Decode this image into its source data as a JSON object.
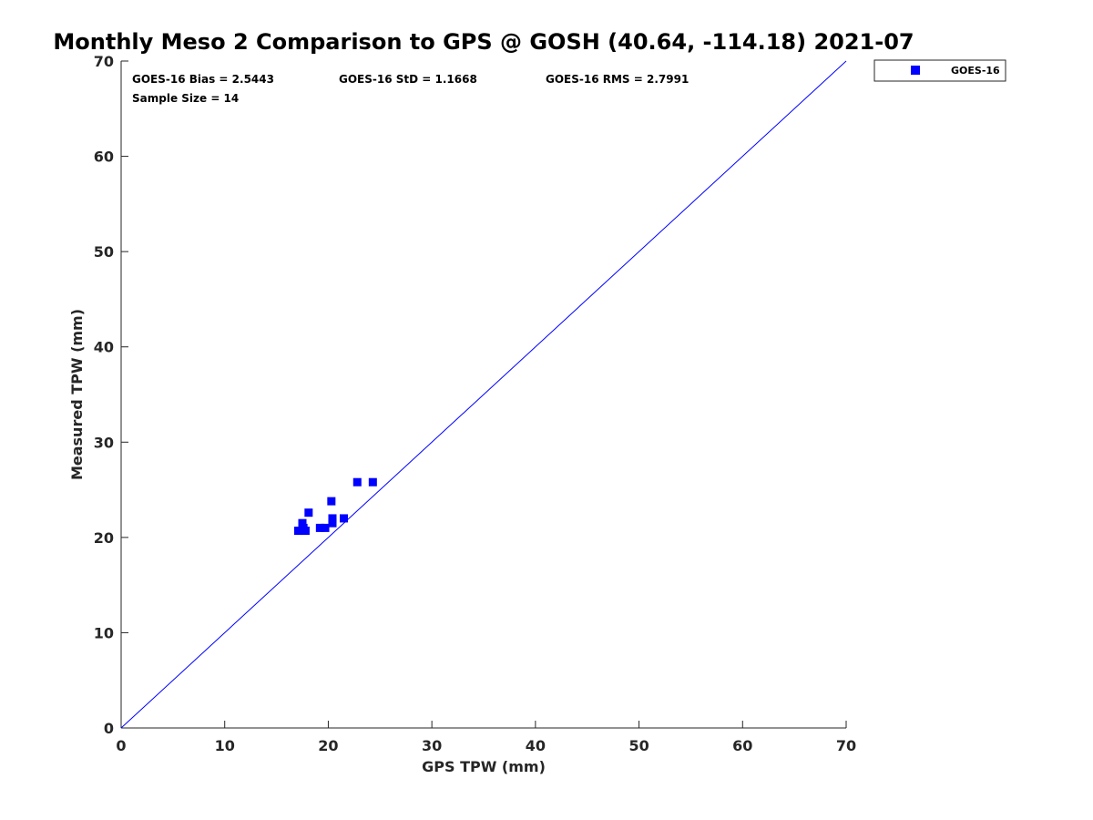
{
  "chart_data": {
    "type": "scatter",
    "title": "Monthly Meso 2 Comparison to GPS @ GOSH (40.64, -114.18) 2021-07",
    "xlabel": "GPS TPW (mm)",
    "ylabel": "Measured TPW (mm)",
    "xlim": [
      0,
      70
    ],
    "ylim": [
      0,
      70
    ],
    "xticks": [
      0,
      10,
      20,
      30,
      40,
      50,
      60,
      70
    ],
    "yticks": [
      0,
      10,
      20,
      30,
      40,
      50,
      60,
      70
    ],
    "grid": false,
    "legend_position": "top-right, outside plot",
    "stats": {
      "bias": "GOES-16 Bias = 2.5443",
      "std": "GOES-16 StD = 1.1668",
      "rms": "GOES-16 RMS = 2.7991",
      "sample_size": "Sample Size = 14"
    },
    "reference_line": {
      "from": [
        0,
        0
      ],
      "to": [
        70,
        70
      ],
      "color": "#0000ff"
    },
    "series": [
      {
        "name": "GOES-16",
        "color": "#0000ff",
        "marker": "square",
        "points": [
          [
            17.1,
            20.7
          ],
          [
            17.5,
            20.7
          ],
          [
            17.6,
            21.0
          ],
          [
            17.5,
            21.5
          ],
          [
            17.8,
            20.7
          ],
          [
            18.1,
            22.6
          ],
          [
            19.2,
            21.0
          ],
          [
            19.7,
            21.0
          ],
          [
            20.4,
            21.5
          ],
          [
            20.4,
            22.0
          ],
          [
            20.3,
            23.8
          ],
          [
            21.5,
            22.0
          ],
          [
            22.8,
            25.8
          ],
          [
            24.3,
            25.8
          ]
        ]
      }
    ]
  }
}
